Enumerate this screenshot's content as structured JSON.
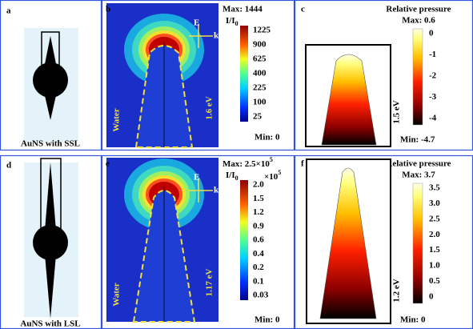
{
  "panels": [
    {
      "label": "a",
      "caption": "AuNS with SSL"
    },
    {
      "label": "b",
      "max": "Max: 1444",
      "unit": "I/I",
      "unit_sub": "0",
      "ticks": [
        "1225",
        "900",
        "625",
        "400",
        "225",
        "100",
        "25"
      ],
      "min": "Min: 0",
      "medium": "Water",
      "energy": "1.6 eV",
      "field": "E",
      "wave": "k"
    },
    {
      "label": "c",
      "title": "Relative pressure",
      "max": "Max: 0.6",
      "ticks": [
        "0",
        "-1",
        "-2",
        "-3",
        "-4"
      ],
      "min": "Min: -4.7",
      "energy": "1.5 eV"
    },
    {
      "label": "d",
      "caption": "AuNS with LSL"
    },
    {
      "label": "e",
      "max": "Max: 2.5×10",
      "max_sup": "5",
      "unit": "I/I",
      "unit_sub": "0",
      "scale": "×10",
      "scale_sup": "5",
      "ticks": [
        "2.0",
        "1.5",
        "1.2",
        "0.9",
        "0.6",
        "0.4",
        "0.2",
        "0.1",
        "0.03"
      ],
      "min": "Min: 0",
      "medium": "Water",
      "energy": "1.17 eV",
      "field": "E",
      "wave": "k"
    },
    {
      "label": "f",
      "title": "Relative pressure",
      "max": "Max: 3.7",
      "ticks": [
        "3.5",
        "3.0",
        "2.5",
        "2.0",
        "1.5",
        "1.0",
        "0.5",
        "0"
      ],
      "min": "Min: 0",
      "energy": "1.2 eV"
    }
  ]
}
